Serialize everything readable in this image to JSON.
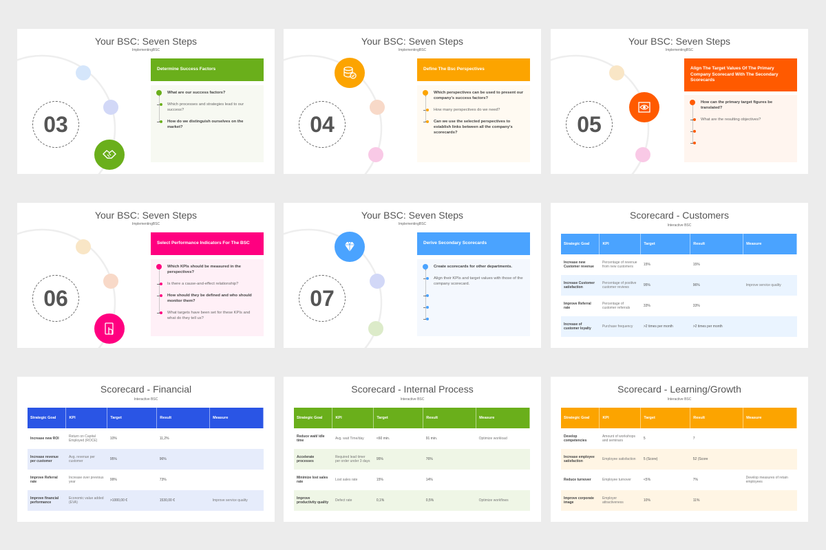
{
  "step_slides": [
    {
      "title": "Your BSC: Seven Steps",
      "subtitle": "ImplementingBSC",
      "number": "03",
      "header": "Determine Success Factors",
      "color": "#6aaf1b",
      "tint": "#f7f9f2",
      "icon": "handshake-icon",
      "big_slot": 2,
      "dot_colors": [
        "#d5e6fb",
        "#d2d8f7",
        "#6aaf1b"
      ],
      "items": [
        {
          "text": "What are our success factors?",
          "bold": true
        },
        {
          "text": "Which processes and strategies lead to our success?",
          "bold": false
        },
        {
          "text": "How do we distinguish ourselves on the market?",
          "bold": true
        }
      ]
    },
    {
      "title": "Your BSC: Seven Steps",
      "subtitle": "ImplementingBSC",
      "number": "04",
      "header": "Define The Bsc Perspectives",
      "color": "#fca400",
      "tint": "#fffaf2",
      "icon": "database-check-icon",
      "big_slot": 0,
      "dot_colors": [
        "#fca400",
        "#f8d9c8",
        "#f9c9e6"
      ],
      "items": [
        {
          "text": "Which perspectives can be used to present our company's success factors?",
          "bold": true
        },
        {
          "text": "How many perspectives do we need?",
          "bold": false
        },
        {
          "text": "Can we use the selected perspectives to establish links between all the company's scorecards?",
          "bold": true
        }
      ]
    },
    {
      "title": "Your BSC: Seven Steps",
      "subtitle": "ImplementingBSC",
      "number": "05",
      "header": "Align The Target Values Of The Primary Company Scorecard With The Secondary Scorecards",
      "color": "#ff5a00",
      "tint": "#fff5ef",
      "icon": "eye-frame-icon",
      "big_slot": 1,
      "dot_colors": [
        "#f9e6c6",
        "#ff5a00",
        "#f9c9e6"
      ],
      "items": [
        {
          "text": "How can the primary target figures be translated?",
          "bold": true
        },
        {
          "text": "What are the resulting objectives?",
          "bold": false
        },
        {
          "text": "",
          "bold": false
        },
        {
          "text": "",
          "bold": false
        }
      ]
    },
    {
      "title": "Your BSC: Seven Steps",
      "subtitle": "ImplementingBSC",
      "number": "06",
      "header": "Select Performance Indicators For The BSC",
      "color": "#ff0080",
      "tint": "#fff0f7",
      "icon": "touch-screen-icon",
      "big_slot": 2,
      "dot_colors": [
        "#f9e6c6",
        "#f8d9c8",
        "#ff0080"
      ],
      "items": [
        {
          "text": "Which KPIs should be measured in the perspectives?",
          "bold": true
        },
        {
          "text": "Is there a cause-and-effect relationship?",
          "bold": false
        },
        {
          "text": "How should they be defined and who should monitor them?",
          "bold": true
        },
        {
          "text": "What targets have been set for these KPIs and what do they tell us?",
          "bold": false
        }
      ]
    },
    {
      "title": "Your BSC: Seven Steps",
      "subtitle": "ImplementingBSC",
      "number": "07",
      "header": "Derive Secondary Scorecards",
      "color": "#4aa3ff",
      "tint": "#f4f8fe",
      "icon": "diamond-icon",
      "big_slot": 0,
      "dot_colors": [
        "#4aa3ff",
        "#d2d8f7",
        "#dcebc9"
      ],
      "items": [
        {
          "text": "Create scorecards for other departments.",
          "bold": true
        },
        {
          "text": "Align their KPIs and target values with those of the company scorecard.",
          "bold": false
        },
        {
          "text": "",
          "bold": false
        },
        {
          "text": "",
          "bold": false
        },
        {
          "text": "",
          "bold": false
        }
      ]
    }
  ],
  "table_slides": [
    {
      "title": "Scorecard - Customers",
      "subtitle": "Interactive BSC",
      "color": "#4aa3ff",
      "alt": "#eaf4ff",
      "columns": [
        "Strategic Goal",
        "KPI",
        "Target",
        "Result",
        "Measure"
      ],
      "rows": [
        [
          "Increase new Customer revenue",
          "Percentage of revenue from new customers",
          "15%",
          "15%",
          ""
        ],
        [
          "Increase Customer satisfaction",
          "Percentage of positive customer reviews",
          "95%",
          "96%",
          "Improve service quality"
        ],
        [
          "Improve Referral rate",
          "Percentage of customer referrals",
          "33%",
          "33%",
          ""
        ],
        [
          "Increase of customer loyalty",
          "Purchase frequency",
          ">2 times per month",
          ">2 times per month",
          ""
        ]
      ]
    },
    {
      "title": "Scorecard - Financial",
      "subtitle": "Interactive BSC",
      "color": "#2a55e5",
      "alt": "#e6ecfb",
      "columns": [
        "Strategic Goal",
        "KPI",
        "Target",
        "Result",
        "Measure"
      ],
      "rows": [
        [
          "Increase new ROI",
          "Return on Capital Employed (ROCE)",
          "10%",
          "11,2%",
          ""
        ],
        [
          "Increase revenue per customer",
          "Avg. revenue per customer",
          "95%",
          "96%",
          ""
        ],
        [
          "Improve Referral rate",
          "Increase over previous year",
          "99%",
          "73%",
          ""
        ],
        [
          "Improve financial performance",
          "Economic value added (EVA)",
          ">1000,00 €",
          "1530,00 €",
          "Improve service quality"
        ]
      ]
    },
    {
      "title": "Scorecard - Internal Process",
      "subtitle": "Interactive BSC",
      "color": "#6aaf1b",
      "alt": "#eff6e6",
      "columns": [
        "Strategic Goal",
        "KPI",
        "Target",
        "Result",
        "Measure"
      ],
      "rows": [
        [
          "Reduce wait/ idle time",
          "Avg. wait Time/day",
          "<60 min.",
          "91 min.",
          "Optimize workload"
        ],
        [
          "Accelerate processes",
          "Required lead timer per order under 3 days",
          "95%",
          "76%",
          ""
        ],
        [
          "Minimize lost sales rate",
          "Lost sales rate",
          "15%",
          "14%",
          ""
        ],
        [
          "Improve productivity quality",
          "Defect rate",
          "0,1%",
          "0,5%",
          "Optimize workflows"
        ]
      ]
    },
    {
      "title": "Scorecard - Learning/Growth",
      "subtitle": "Interactive BSC",
      "color": "#fca400",
      "alt": "#fff5e4",
      "columns": [
        "Strategic Goal",
        "KPI",
        "Target",
        "Result",
        "Measure"
      ],
      "rows": [
        [
          "Develop competencies",
          "Amount of workshops and seminars",
          "5",
          "7",
          ""
        ],
        [
          "Increase employee satisfaction",
          "Employee satisfaction",
          "5 (Score)",
          "52 (Score",
          ""
        ],
        [
          "Reduce turnover",
          "Employee turnover",
          "<5%",
          "7%",
          "Develop measures of retain employees"
        ],
        [
          "Improve corporate image",
          "Employer attractiveness",
          "10%",
          "11%",
          ""
        ]
      ]
    }
  ]
}
